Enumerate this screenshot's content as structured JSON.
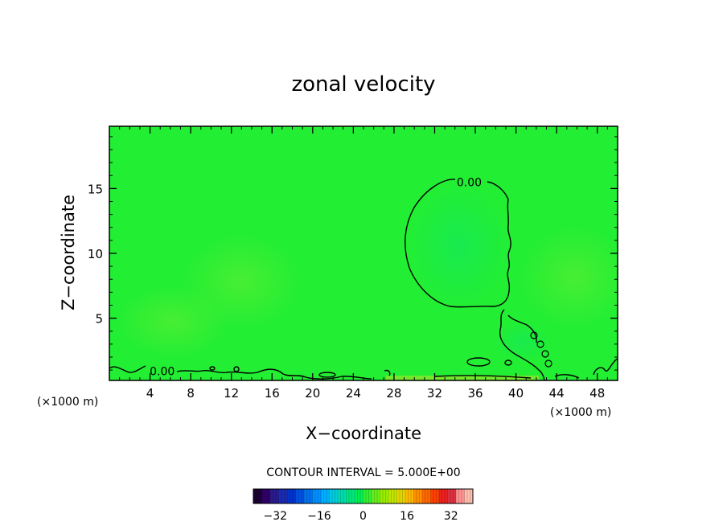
{
  "chart_data": {
    "type": "heatmap",
    "title": "zonal velocity",
    "xlabel": "X−coordinate",
    "ylabel": "Z−coordinate",
    "x_unit_left": "(×1000 m)",
    "x_unit_right": "(×1000 m)",
    "xlim": [
      0,
      50
    ],
    "ylim": [
      0.2,
      19.8
    ],
    "x_ticks": [
      4,
      8,
      12,
      16,
      20,
      24,
      28,
      32,
      36,
      40,
      44,
      48
    ],
    "x_tick_labels": [
      "4",
      "8",
      "12",
      "16",
      "20",
      "24",
      "28",
      "32",
      "36",
      "40",
      "44",
      "48"
    ],
    "y_ticks": [
      5,
      10,
      15
    ],
    "y_tick_labels": [
      "5",
      "10",
      "15"
    ],
    "contour_interval_text": "CONTOUR INTERVAL = 5.000E+00",
    "contour_labels": [
      {
        "text": "0.00",
        "x": 35.4,
        "y": 15.5
      },
      {
        "text": "0.00",
        "x": 5.2,
        "y": 0.9
      }
    ],
    "field_note": "velocity near 0 over most of the domain (green)",
    "colorbar": {
      "min": -40,
      "max": 40,
      "ticks": [
        -32,
        -16,
        0,
        16,
        32
      ],
      "tick_labels": [
        "−32",
        "−16",
        "0",
        "16",
        "32"
      ],
      "colors": [
        "#1a0033",
        "#2e0066",
        "#2a1a8c",
        "#1a2ab3",
        "#0033cc",
        "#0050e0",
        "#0070f0",
        "#0090ff",
        "#00b0ff",
        "#00cce0",
        "#00dcb0",
        "#00e680",
        "#00ee55",
        "#33f033",
        "#66f01a",
        "#99ee00",
        "#c0e600",
        "#e6d600",
        "#ffb800",
        "#ff9000",
        "#ff6800",
        "#ff4000",
        "#ee2020",
        "#dd3040",
        "#ff9090",
        "#ffc0b0"
      ]
    }
  },
  "colors": {
    "field": "#22ee33",
    "contour": "#000000"
  }
}
